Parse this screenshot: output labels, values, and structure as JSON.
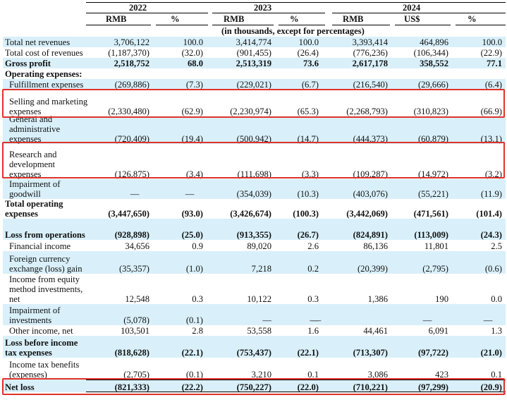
{
  "header": {
    "years": [
      "2022",
      "2023",
      "2024"
    ],
    "currencies": [
      "RMB",
      "RMB",
      "RMB",
      "US$"
    ],
    "percent_label": "%",
    "note": "(in thousands, except for percentages)"
  },
  "rows": [
    {
      "label": "Total net revenues",
      "shade": true,
      "bold": false,
      "values": [
        "3,706,122",
        "100.0",
        "3,414,774",
        "100.0",
        "3,393,414",
        "464,896",
        "100.0"
      ]
    },
    {
      "label": "Total cost of revenues",
      "shade": false,
      "bold": false,
      "values": [
        "(1,187,370)",
        "(32.0)",
        "(901,455)",
        "(26.4)",
        "(776,236)",
        "(106,344)",
        "(22.9)"
      ]
    },
    {
      "label": "Gross profit",
      "shade": true,
      "bold": true,
      "values": [
        "2,518,752",
        "68.0",
        "2,513,319",
        "73.6",
        "2,617,178",
        "358,552",
        "77.1"
      ]
    },
    {
      "label": "Operating expenses:",
      "shade": false,
      "bold": true,
      "values": [
        "",
        "",
        "",
        "",
        "",
        "",
        ""
      ]
    },
    {
      "label": "Fulfillment expenses",
      "shade": true,
      "bold": false,
      "indent": true,
      "values": [
        "(269,886)",
        "(7.3)",
        "(229,021)",
        "(6.7)",
        "(216,540)",
        "(29,666)",
        "(6.4)"
      ]
    },
    {
      "label": "Selling and marketing expenses",
      "shade": false,
      "bold": false,
      "indent": true,
      "values": [
        "(2,330,480)",
        "(62.9)",
        "(2,230,974)",
        "(65.3)",
        "(2,268,793)",
        "(310,823)",
        "(66.9)"
      ]
    },
    {
      "label": "General and administrative expenses",
      "shade": true,
      "bold": false,
      "indent": true,
      "values": [
        "(720,409)",
        "(19.4)",
        "(500,942)",
        "(14.7)",
        "(444,373)",
        "(60,879)",
        "(13.1)"
      ]
    },
    {
      "label": "Research and development expenses",
      "shade": false,
      "bold": false,
      "indent": true,
      "values": [
        "(126,875)",
        "(3.4)",
        "(111,698)",
        "(3.3)",
        "(109,287)",
        "(14,972)",
        "(3.2)"
      ]
    },
    {
      "label": "Impairment of goodwill",
      "shade": true,
      "bold": false,
      "indent": true,
      "values": [
        "—",
        "—",
        "(354,039)",
        "(10.3)",
        "(403,076)",
        "(55,221)",
        "(11.9)"
      ]
    },
    {
      "label": "Total operating expenses",
      "shade": false,
      "bold": true,
      "values": [
        "(3,447,650)",
        "(93.0)",
        "(3,426,674)",
        "(100.3)",
        "(3,442,069)",
        "(471,561)",
        "(101.4)"
      ]
    },
    {
      "label": "Loss from operations",
      "shade": true,
      "bold": true,
      "values": [
        "(928,898)",
        "(25.0)",
        "(913,355)",
        "(26.7)",
        "(824,891)",
        "(113,009)",
        "(24.3)"
      ]
    },
    {
      "label": "Financial income",
      "shade": false,
      "bold": false,
      "indent": true,
      "values": [
        "34,656",
        "0.9",
        "89,020",
        "2.6",
        "86,136",
        "11,801",
        "2.5"
      ]
    },
    {
      "label": "Foreign currency exchange (loss) gain",
      "shade": true,
      "bold": false,
      "indent": true,
      "values": [
        "(35,357)",
        "(1.0)",
        "7,218",
        "0.2",
        "(20,399)",
        "(2,795)",
        "(0.6)"
      ]
    },
    {
      "label": "Income from equity method investments, net",
      "shade": false,
      "bold": false,
      "indent": true,
      "values": [
        "12,548",
        "0.3",
        "10,122",
        "0.3",
        "1,386",
        "190",
        "0.0"
      ]
    },
    {
      "label": "Impairment of investments",
      "shade": true,
      "bold": false,
      "indent": true,
      "values": [
        "(5,078)",
        "(0.1)",
        "—",
        "—",
        "—",
        "—",
        "—"
      ]
    },
    {
      "label": "Other income, net",
      "shade": false,
      "bold": false,
      "indent": true,
      "values": [
        "103,501",
        "2.8",
        "53,558",
        "1.6",
        "44,461",
        "6,091",
        "1.3"
      ]
    },
    {
      "label": "Loss before income tax expenses",
      "shade": true,
      "bold": true,
      "values": [
        "(818,628)",
        "(22.1)",
        "(753,437)",
        "(22.1)",
        "(713,307)",
        "(97,722)",
        "(21.0)"
      ]
    },
    {
      "label": "Income tax benefits (expenses)",
      "shade": false,
      "bold": false,
      "indent": true,
      "values": [
        "(2,705)",
        "(0.1)",
        "3,210",
        "0.1",
        "3,086",
        "423",
        "0.1"
      ]
    },
    {
      "label": "Net loss",
      "shade": true,
      "bold": true,
      "values": [
        "(821,333)",
        "(22.2)",
        "(750,227)",
        "(22.0)",
        "(710,221)",
        "(97,299)",
        "(20.9)"
      ]
    }
  ],
  "accent_color": "#e0322a",
  "shade_color": "#d9f0fa"
}
